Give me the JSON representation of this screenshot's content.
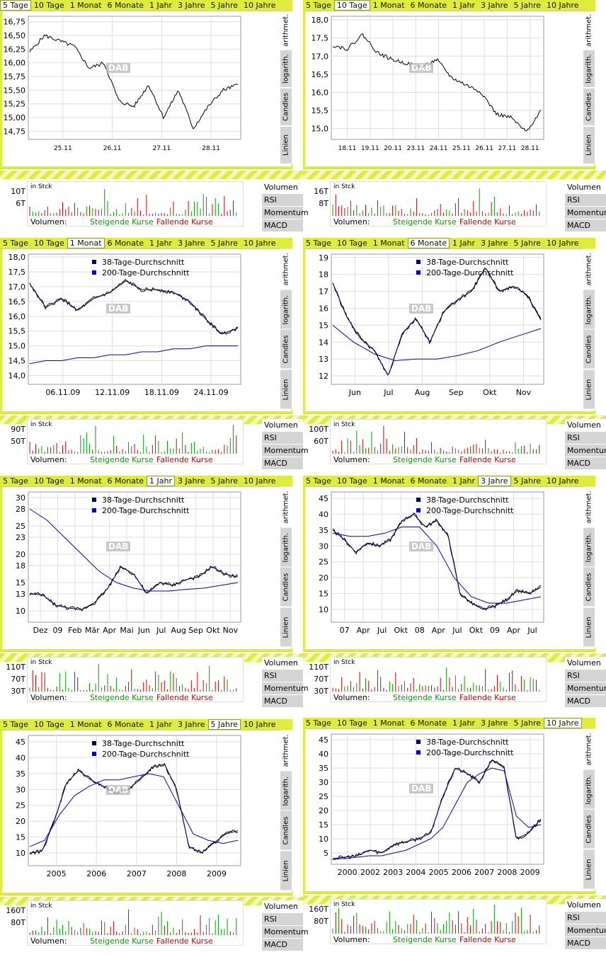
{
  "tabs": [
    "5 Tage",
    "10 Tage",
    "1 Monat",
    "6 Monate",
    "1 Jahr",
    "3 Jahre",
    "5 Jahre",
    "10 Jahre"
  ],
  "side_buttons": [
    "arithmet.",
    "logarith.",
    "Candles",
    "Linien"
  ],
  "vol_menu": [
    "Volumen",
    "RSI",
    "Momentum",
    "MACD"
  ],
  "vol_labels": {
    "unit": "in Stck",
    "volumen": "Volumen:",
    "rising": "Steigende Kurse",
    "falling": "Fallende Kurse"
  },
  "watermark": "DAB",
  "legend": {
    "ma38": "38-Tage-Durchschnitt",
    "ma200": "200-Tage-Durchschnitt"
  },
  "colors": {
    "tab_bar": "#e0ec3c",
    "ma38": "#000066",
    "ma200": "#0000cc",
    "rising": "#00a000",
    "falling": "#cc0000"
  },
  "chart_data": [
    {
      "type": "line",
      "period": "5 Tage",
      "yticks": [
        "16,75",
        "16,50",
        "16,25",
        "16,00",
        "15,75",
        "15,50",
        "15,25",
        "15,00",
        "14,75"
      ],
      "xticks": [
        "25.11",
        "26.11",
        "27.11",
        "28.11"
      ],
      "ylim": [
        14.6,
        16.85
      ],
      "volume_ticks": [
        "10T",
        "6T"
      ]
    },
    {
      "type": "line",
      "period": "10 Tage",
      "yticks": [
        "18,0",
        "17,5",
        "17,0",
        "16,5",
        "16,0",
        "15,5",
        "15,0"
      ],
      "xticks": [
        "18.11",
        "19.11",
        "20.11",
        "23.11",
        "24.11",
        "25.11",
        "26.11",
        "27.11",
        "28.11"
      ],
      "ylim": [
        14.7,
        18.1
      ],
      "volume_ticks": [
        "16T",
        "8T"
      ]
    },
    {
      "type": "line",
      "period": "1 Monat",
      "yticks": [
        "18,0",
        "17,5",
        "17,0",
        "16,5",
        "16,0",
        "15,5",
        "15,0",
        "14,5",
        "14,0"
      ],
      "xticks": [
        "06.11.09",
        "12.11.09",
        "18.11.09",
        "24.11.09"
      ],
      "ylim": [
        13.7,
        18.1
      ],
      "volume_ticks": [
        "90T",
        "50T"
      ],
      "legend": true
    },
    {
      "type": "line",
      "period": "6 Monate",
      "yticks": [
        "19",
        "18",
        "17",
        "16",
        "15",
        "14",
        "13",
        "12"
      ],
      "xticks": [
        "Jun",
        "Jul",
        "Aug",
        "Sep",
        "Okt",
        "Nov"
      ],
      "ylim": [
        11.5,
        19.2
      ],
      "volume_ticks": [
        "100T",
        "60T"
      ],
      "legend": true
    },
    {
      "type": "line",
      "period": "1 Jahr",
      "yticks": [
        "30",
        "28",
        "25",
        "23",
        "20",
        "18",
        "15",
        "13",
        "10"
      ],
      "xticks": [
        "Dez",
        "09",
        "Feb",
        "Mär",
        "Apr",
        "Mai",
        "Jun",
        "Jul",
        "Aug",
        "Sep",
        "Okt",
        "Nov"
      ],
      "ylim": [
        8,
        31
      ],
      "volume_ticks": [
        "110T",
        "70T",
        "30T"
      ],
      "legend": true
    },
    {
      "type": "line",
      "period": "3 Jahre",
      "yticks": [
        "45",
        "40",
        "35",
        "30",
        "25",
        "20",
        "15",
        "10"
      ],
      "xticks": [
        "07",
        "Apr",
        "Jul",
        "Okt",
        "08",
        "Apr",
        "Jul",
        "Okt",
        "09",
        "Apr",
        "Jul"
      ],
      "ylim": [
        6,
        47
      ],
      "volume_ticks": [
        "110T",
        "70T",
        "30T"
      ],
      "legend": true
    },
    {
      "type": "line",
      "period": "5 Jahre",
      "yticks": [
        "45",
        "40",
        "35",
        "30",
        "25",
        "20",
        "15",
        "10"
      ],
      "xticks": [
        "2005",
        "2006",
        "2007",
        "2008",
        "2009"
      ],
      "ylim": [
        6,
        47
      ],
      "volume_ticks": [
        "160T",
        "80T"
      ],
      "legend": true
    },
    {
      "type": "line",
      "period": "10 Jahre",
      "yticks": [
        "45",
        "40",
        "35",
        "30",
        "25",
        "20",
        "15",
        "10",
        "5"
      ],
      "xticks": [
        "2000",
        "2002",
        "2003",
        "2004",
        "2005",
        "2006",
        "2007",
        "2008",
        "2009"
      ],
      "ylim": [
        1,
        47
      ],
      "volume_ticks": [
        "160T",
        "80T"
      ],
      "legend": true
    }
  ]
}
